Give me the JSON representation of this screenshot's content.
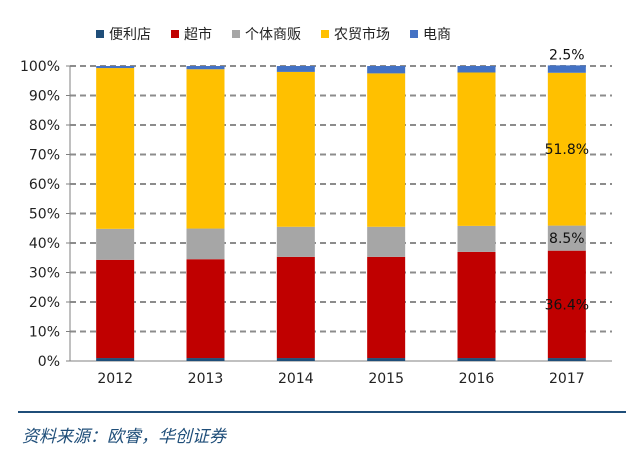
{
  "chart_data": {
    "type": "bar",
    "stacked": true,
    "categories": [
      "2012",
      "2013",
      "2014",
      "2015",
      "2016",
      "2017"
    ],
    "series": [
      {
        "name": "便利店",
        "color": "#1f4e79",
        "values": [
          1.0,
          1.0,
          1.0,
          1.0,
          1.0,
          1.0
        ]
      },
      {
        "name": "超市",
        "color": "#c00000",
        "values": [
          33.3,
          33.5,
          34.3,
          34.3,
          36.0,
          36.4
        ]
      },
      {
        "name": "个体商贩",
        "color": "#a6a6a6",
        "values": [
          10.5,
          10.4,
          10.2,
          10.2,
          8.8,
          8.5
        ]
      },
      {
        "name": "农贸市场",
        "color": "#ffc000",
        "values": [
          54.5,
          54.0,
          52.5,
          52.0,
          52.0,
          51.8
        ]
      },
      {
        "name": "电商",
        "color": "#4472c4",
        "values": [
          0.7,
          1.1,
          2.0,
          2.5,
          2.2,
          2.5
        ]
      }
    ],
    "ylim": [
      0,
      100
    ],
    "yticks": [
      "0%",
      "10%",
      "20%",
      "30%",
      "40%",
      "50%",
      "60%",
      "70%",
      "80%",
      "90%",
      "100%"
    ],
    "grid": true,
    "legend_position": "top",
    "annotations": [
      {
        "category": "2017",
        "series": "电商",
        "text": "2.5%"
      },
      {
        "category": "2017",
        "series": "农贸市场",
        "text": "51.8%"
      },
      {
        "category": "2017",
        "series": "个体商贩",
        "text": "8.5%"
      },
      {
        "category": "2017",
        "series": "超市",
        "text": "36.4%"
      }
    ]
  },
  "source_note": "资料来源：欧睿，华创证券"
}
